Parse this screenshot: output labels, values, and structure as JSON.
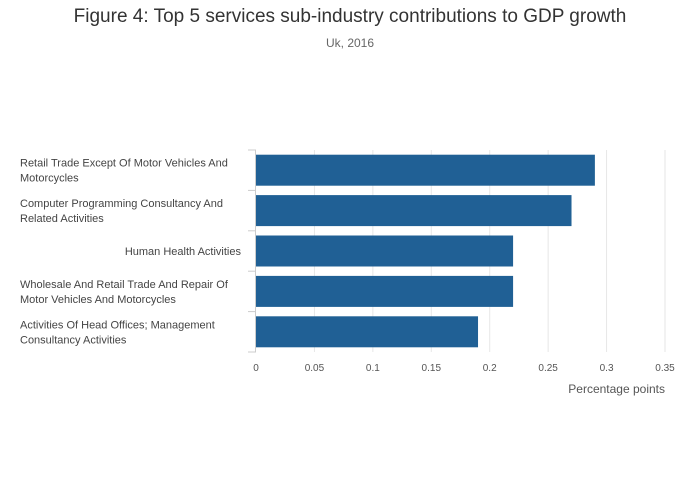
{
  "chart_data": {
    "type": "bar",
    "orientation": "horizontal",
    "title": "Figure 4: Top 5 services sub-industry contributions to GDP growth",
    "subtitle": "Uk, 2016",
    "categories": [
      [
        "Retail Trade Except Of Motor Vehicles And",
        "Motorcycles"
      ],
      [
        "Computer Programming Consultancy And",
        "Related Activities"
      ],
      [
        "Human Health Activities"
      ],
      [
        "Wholesale And Retail Trade And Repair Of",
        "Motor Vehicles And Motorcycles"
      ],
      [
        "Activities Of Head Offices; Management",
        "Consultancy Activities"
      ]
    ],
    "values": [
      0.29,
      0.27,
      0.22,
      0.22,
      0.19
    ],
    "xlabel": "Percentage points",
    "ylabel": "",
    "xlim": [
      0,
      0.35
    ],
    "xticks": [
      0,
      0.05,
      0.1,
      0.15,
      0.2,
      0.25,
      0.3,
      0.35
    ],
    "xtick_labels": [
      "0",
      "0.05",
      "0.1",
      "0.15",
      "0.2",
      "0.25",
      "0.3",
      "0.35"
    ],
    "grid": true,
    "bar_color": "#206095",
    "grid_color": "#e6e6e6"
  }
}
